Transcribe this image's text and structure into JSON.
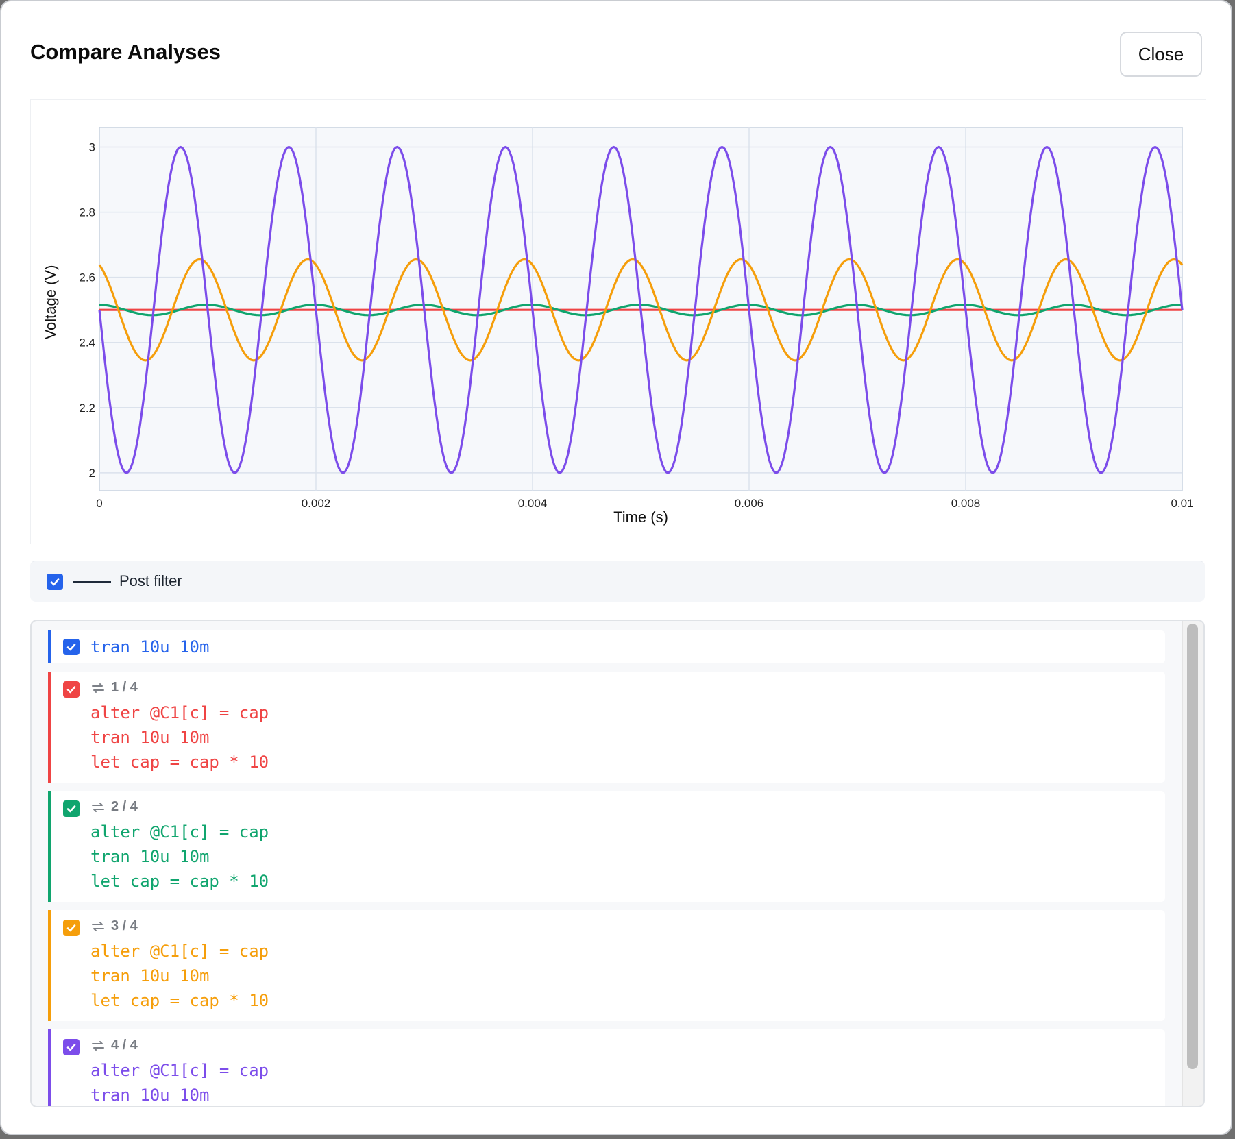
{
  "modal": {
    "title": "Compare Analyses",
    "close_label": "Close"
  },
  "chart_data": {
    "type": "line",
    "xlabel": "Time (s)",
    "ylabel": "Voltage (V)",
    "xlim": [
      0,
      0.01
    ],
    "ylim": [
      1.945,
      3.06
    ],
    "x_ticks": [
      0,
      0.002,
      0.004,
      0.006,
      0.008,
      0.01
    ],
    "x_tick_labels": [
      "0",
      "0.002",
      "0.004",
      "0.006",
      "0.008",
      "0.01"
    ],
    "y_ticks": [
      2,
      2.2,
      2.4,
      2.6,
      2.8,
      3
    ],
    "y_tick_labels": [
      "2",
      "2.2",
      "2.4",
      "2.6",
      "2.8",
      "3"
    ],
    "grid": true,
    "series": [
      {
        "color": "#ef4444",
        "offset": 2.5,
        "amplitude": 0.0,
        "frequency": 1000,
        "phase_lag": 0.0
      },
      {
        "color": "#10a56e",
        "offset": 2.5,
        "amplitude": 0.016,
        "frequency": 1000,
        "phase_lag": 1.5
      },
      {
        "color": "#f59e0b",
        "offset": 2.5,
        "amplitude": 0.155,
        "frequency": 1000,
        "phase_lag": 1.1
      },
      {
        "color": "#7c4dea",
        "offset": 2.5,
        "amplitude": 0.5,
        "frequency": 1000,
        "phase_lag": 0.0
      }
    ]
  },
  "legend": {
    "label": "Post filter",
    "checked": true
  },
  "analyses": [
    {
      "color": "#2563eb",
      "badge": "",
      "lines": [
        "tran 10u 10m"
      ]
    },
    {
      "color": "#ef4444",
      "badge": "1 / 4",
      "lines": [
        "alter @C1[c] = cap",
        "tran 10u 10m",
        "let cap = cap * 10"
      ]
    },
    {
      "color": "#10a56e",
      "badge": "2 / 4",
      "lines": [
        "alter @C1[c] = cap",
        "tran 10u 10m",
        "let cap = cap * 10"
      ]
    },
    {
      "color": "#f59e0b",
      "badge": "3 / 4",
      "lines": [
        "alter @C1[c] = cap",
        "tran 10u 10m",
        "let cap = cap * 10"
      ]
    },
    {
      "color": "#7c4dea",
      "badge": "4 / 4",
      "lines": [
        "alter @C1[c] = cap",
        "tran 10u 10m"
      ]
    }
  ]
}
